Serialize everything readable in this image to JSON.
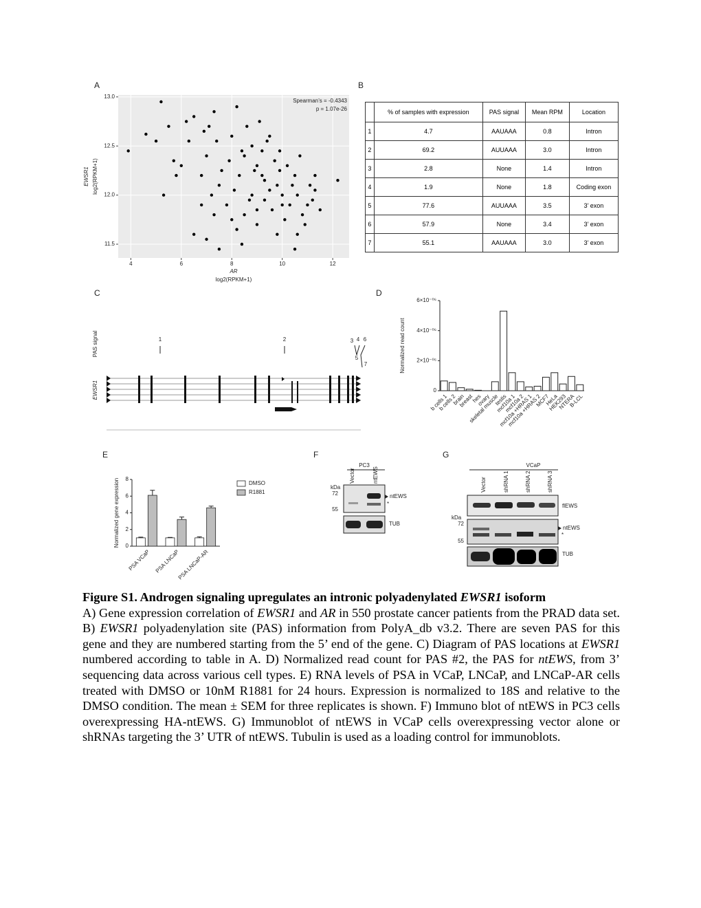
{
  "panel_letters": [
    "A",
    "B",
    "C",
    "D",
    "E",
    "F",
    "G"
  ],
  "chart_data": [
    {
      "type": "scatter",
      "annotations": [
        "Spearman’s = -0.4343",
        "p = 1.07e-26"
      ],
      "xlabel": "AR",
      "xlabel_units": "log2(RPKM+1)",
      "ylabel": "EWSR1",
      "ylabel_units": "log2(RPKM+1)",
      "xlim": [
        3.5,
        12.65
      ],
      "ylim": [
        11.36,
        13.02
      ],
      "grid": true,
      "color": "#000000",
      "xticks": [
        4,
        6,
        8,
        10,
        12
      ],
      "yticks": [
        {
          "value": 11.5,
          "label": "11.5"
        },
        {
          "value": 12,
          "label": "12.0"
        },
        {
          "value": 12.5,
          "label": "12.5"
        },
        {
          "value": 13,
          "label": "13.0"
        }
      ],
      "x": [
        3.9,
        4.6,
        5.0,
        5.2,
        5.5,
        5.3,
        6.2,
        6.5,
        7.3,
        8.2,
        8.0,
        7.0,
        6.8,
        6.0,
        5.7,
        7.5,
        7.8,
        8.5,
        8.8,
        9.0,
        9.2,
        9.5,
        9.8,
        10.0,
        10.3,
        10.5,
        10.8,
        11.0,
        11.2,
        11.3,
        12.2,
        9.0,
        8.5,
        8.0,
        7.0,
        7.5,
        8.4,
        9.8,
        10.6,
        6.5,
        6.8,
        7.2,
        8.8,
        9.3,
        9.6,
        10.2,
        10.7,
        11.3,
        9.9,
        9.4,
        8.6,
        9.1,
        8.3,
        7.9,
        7.4,
        6.9,
        10.1,
        10.9,
        11.5,
        8.7,
        9.7,
        9.2,
        8.9,
        9.5,
        10.4,
        7.6,
        8.1,
        6.3,
        5.8,
        7.1,
        8.4,
        9.3,
        10.6,
        11.1,
        9.0,
        10.0,
        8.2,
        7.3,
        10.5,
        9.9
      ],
      "y": [
        12.45,
        12.62,
        12.55,
        12.95,
        12.7,
        12.0,
        12.75,
        12.8,
        12.85,
        12.9,
        12.6,
        12.4,
        12.2,
        12.3,
        12.35,
        12.1,
        11.9,
        12.4,
        12.5,
        12.3,
        12.2,
        12.6,
        12.1,
        12.0,
        11.9,
        12.2,
        11.8,
        11.9,
        11.95,
        12.05,
        12.15,
        11.7,
        11.8,
        11.75,
        11.55,
        11.45,
        11.5,
        11.6,
        11.6,
        11.6,
        11.9,
        12.0,
        12.0,
        11.95,
        11.85,
        12.3,
        12.4,
        12.2,
        12.45,
        12.55,
        12.7,
        12.75,
        12.2,
        12.35,
        12.55,
        12.65,
        11.75,
        11.7,
        11.85,
        11.95,
        12.35,
        12.45,
        12.25,
        12.05,
        12.1,
        12.25,
        12.05,
        12.55,
        12.2,
        12.7,
        12.45,
        12.15,
        12.0,
        12.1,
        11.85,
        11.9,
        11.65,
        11.8,
        11.45,
        12.25
      ]
    },
    {
      "type": "bar",
      "ylabel": "Normalized read count",
      "color": "#ffffff",
      "categories": [
        "b cells 1",
        "b cells 2",
        "brain",
        "breast",
        "hes",
        "ovary",
        "skeletal muscle",
        "testis",
        "mcf10a 1",
        "mcf10a 2",
        "mcf10a +HRAS 1",
        "mcf10a +HRAS 2",
        "MCF7",
        "HeLa",
        "HEK293",
        "NTERA",
        "B-LCL"
      ],
      "values": [
        6.5e-07,
        5.5e-07,
        2e-07,
        1e-07,
        3e-08,
        0,
        6e-07,
        5.3e-06,
        1.2e-06,
        6e-07,
        2.5e-07,
        3e-07,
        9e-07,
        1.2e-06,
        4.5e-07,
        9.5e-07,
        4e-07
      ],
      "ylim": [
        0,
        6e-06
      ],
      "yticks": [
        0,
        {
          "value": 2e-06,
          "label": "2×10⁻⁰⁶"
        },
        {
          "value": 4e-06,
          "label": "4×10⁻⁰⁶"
        },
        {
          "value": 6e-06,
          "label": "6×10⁻⁰⁶"
        }
      ]
    },
    {
      "type": "bar",
      "ylabel": "Normalized gene expression",
      "legend": "upper right",
      "categories": [
        "PSA VCaP",
        "PSA LNCaP",
        "PSA LNCaP-AR"
      ],
      "series": [
        {
          "name": "DMSO",
          "color": "#ffffff",
          "values": [
            1,
            1,
            1
          ],
          "errors": [
            0.08,
            0.05,
            0.12
          ]
        },
        {
          "name": "R1881",
          "color": "#bdbdbd",
          "values": [
            6.1,
            3.2,
            4.6
          ],
          "errors": [
            0.6,
            0.3,
            0.2
          ]
        }
      ],
      "ylim": [
        0,
        8
      ],
      "yticks": [
        0,
        2,
        4,
        6,
        8
      ]
    }
  ],
  "table_b": {
    "header": [
      "% of samples with expression",
      "PAS signal",
      "Mean RPM",
      "Location"
    ],
    "rows": [
      [
        "1",
        "4.7",
        "AAUAAA",
        "0.8",
        "Intron"
      ],
      [
        "2",
        "69.2",
        "AUUAAA",
        "3.0",
        "Intron"
      ],
      [
        "3",
        "2.8",
        "None",
        "1.4",
        "Intron"
      ],
      [
        "4",
        "1.9",
        "None",
        "1.8",
        "Coding exon"
      ],
      [
        "5",
        "77.6",
        "AUUAAA",
        "3.5",
        "3’ exon"
      ],
      [
        "6",
        "57.9",
        "None",
        "3.4",
        "3’ exon"
      ],
      [
        "7",
        "55.1",
        "AAUAAA",
        "3.0",
        "3’ exon"
      ]
    ]
  },
  "diagram_c": {
    "track_label": "PAS signal",
    "gene": "EWSR1",
    "pas_labels": [
      "1",
      "2",
      "3",
      "4",
      "6",
      "5",
      "7"
    ]
  },
  "blot_f": {
    "cell_line": "PC3",
    "lanes": [
      "Vector",
      "ntEWS"
    ],
    "kda": "kDa",
    "markers": [
      "72",
      "55"
    ],
    "band_labels": [
      "ntEWS",
      "*",
      "TUB"
    ]
  },
  "blot_g": {
    "cell_line": "VCaP",
    "lanes": [
      "Vector",
      "shRNA 1",
      "shRNA 2",
      "shRNA 3"
    ],
    "kda": "kDa",
    "markers": [
      "72",
      "55"
    ],
    "band_labels": [
      "flEWS",
      "ntEWS",
      "*",
      "TUB"
    ]
  },
  "caption": {
    "title": [
      {
        "text": "Figure S1. Androgen signaling upregulates an intronic polyadenylated ",
        "italic": false
      },
      {
        "text": "EWSR1",
        "italic": true
      },
      {
        "text": " isoform",
        "italic": false
      }
    ],
    "body": [
      {
        "text": "A) Gene expression correlation of ",
        "italic": false
      },
      {
        "text": "EWSR1",
        "italic": true
      },
      {
        "text": " and ",
        "italic": false
      },
      {
        "text": "AR",
        "italic": true
      },
      {
        "text": " in 550 prostate cancer patients from the PRAD data set. B) ",
        "italic": false
      },
      {
        "text": "EWSR1",
        "italic": true
      },
      {
        "text": " polyadenylation site (PAS) information from PolyA_db v3.2. There are seven PAS for this gene and they are numbered starting from the 5’ end of the gene. C) Diagram of PAS locations at ",
        "italic": false
      },
      {
        "text": "EWSR1",
        "italic": true
      },
      {
        "text": " numbered according to table in A. D) Normalized read count for PAS #2, the PAS for ",
        "italic": false
      },
      {
        "text": "ntEWS",
        "italic": true
      },
      {
        "text": ", from 3’ sequencing data across various cell types. E) RNA levels of PSA in VCaP, LNCaP, and LNCaP-AR cells treated with DMSO or 10nM R1881 for 24 hours. Expression is normalized to 18S and relative to the DMSO condition. The mean ± SEM for three replicates is shown. F) Immuno blot of ntEWS in PC3 cells overexpressing HA-ntEWS. G) Immunoblot of ntEWS in VCaP cells overexpressing vector alone or shRNAs targeting the 3’ UTR of ntEWS. Tubulin is used as a loading control for immunoblots.",
        "italic": false
      }
    ]
  }
}
